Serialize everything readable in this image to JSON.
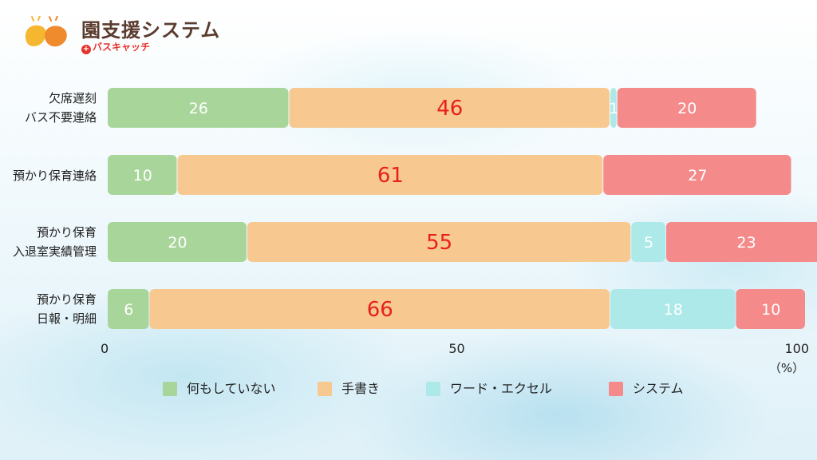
{
  "header": {
    "title": "園支援システム",
    "subtitle": "バスキャッチ"
  },
  "colors": {
    "none": "#a8d59a",
    "handwritten": "#f7c990",
    "excel": "#aee9ea",
    "system": "#f48a8a",
    "brand_red": "#e5322d",
    "logo_yellow": "#f6b730",
    "logo_orange": "#ef8a2d"
  },
  "chart_data": {
    "type": "bar",
    "orientation": "horizontal",
    "stacked": true,
    "categories": [
      [
        "欠席遅刻",
        "バス不要連絡"
      ],
      [
        "預かり保育連絡"
      ],
      [
        "預かり保育",
        "入退室実績管理"
      ],
      [
        "預かり保育",
        "日報・明細"
      ]
    ],
    "series": [
      {
        "name": "何もしていない",
        "color_key": "none",
        "values": [
          26,
          10,
          20,
          6
        ]
      },
      {
        "name": "手書き",
        "color_key": "handwritten",
        "values": [
          46,
          61,
          55,
          66
        ]
      },
      {
        "name": "ワード・エクセル",
        "color_key": "excel",
        "values": [
          1,
          0,
          5,
          18
        ]
      },
      {
        "name": "システム",
        "color_key": "system",
        "values": [
          20,
          27,
          23,
          10
        ]
      }
    ],
    "highlight_series": "手書き",
    "xlim": [
      0,
      100
    ],
    "xticks": [
      "0",
      "50",
      "100"
    ],
    "xunit": "（%）",
    "grid": false,
    "legend": "bottom"
  }
}
